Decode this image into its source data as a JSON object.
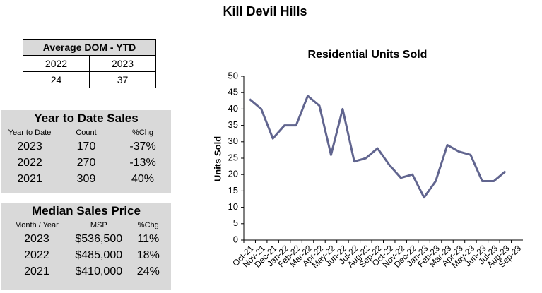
{
  "title": "Kill Devil Hills",
  "dom_table": {
    "title": "Average DOM - YTD",
    "columns": [
      "2022",
      "2023"
    ],
    "values": [
      24,
      37
    ]
  },
  "ytd_table": {
    "title": "Year to Date Sales",
    "headers": [
      "Year to Date",
      "Count",
      "%Chg"
    ],
    "rows": [
      [
        "2023",
        170,
        "-37%"
      ],
      [
        "2022",
        270,
        "-13%"
      ],
      [
        "2021",
        309,
        "40%"
      ]
    ]
  },
  "msp_table": {
    "title": "Median Sales Price",
    "headers": [
      "Month / Year",
      "MSP",
      "%Chg"
    ],
    "rows": [
      [
        "2023",
        "$536,500",
        "11%"
      ],
      [
        "2022",
        "$485,000",
        "18%"
      ],
      [
        "2021",
        "$410,000",
        "24%"
      ]
    ]
  },
  "chart_data": {
    "type": "line",
    "title": "Residential Units Sold",
    "y_label": "Units Sold",
    "categories": [
      "Oct-21",
      "Nov-21",
      "Dec-21",
      "Jan-22",
      "Feb-22",
      "Mar-22",
      "Apr-22",
      "May-22",
      "Jun-22",
      "Jul-22",
      "Aug-22",
      "Sep-22",
      "Oct-22",
      "Nov-22",
      "Dec-22",
      "Jan-23",
      "Feb-23",
      "Mar-23",
      "Apr-23",
      "May-23",
      "Jun-23",
      "Jul-23",
      "Aug-23",
      "Sep-23"
    ],
    "series": [
      {
        "name": "Units Sold",
        "color": "#61658f",
        "values": [
          43,
          40,
          31,
          35,
          35,
          44,
          41,
          26,
          40,
          24,
          25,
          28,
          23,
          19,
          20,
          13,
          18,
          29,
          27,
          26,
          18,
          18,
          21,
          null
        ]
      }
    ],
    "ylim": [
      0,
      50
    ],
    "yticks": [
      0,
      5,
      10,
      15,
      20,
      25,
      30,
      35,
      40,
      45,
      50
    ],
    "grid": false
  }
}
